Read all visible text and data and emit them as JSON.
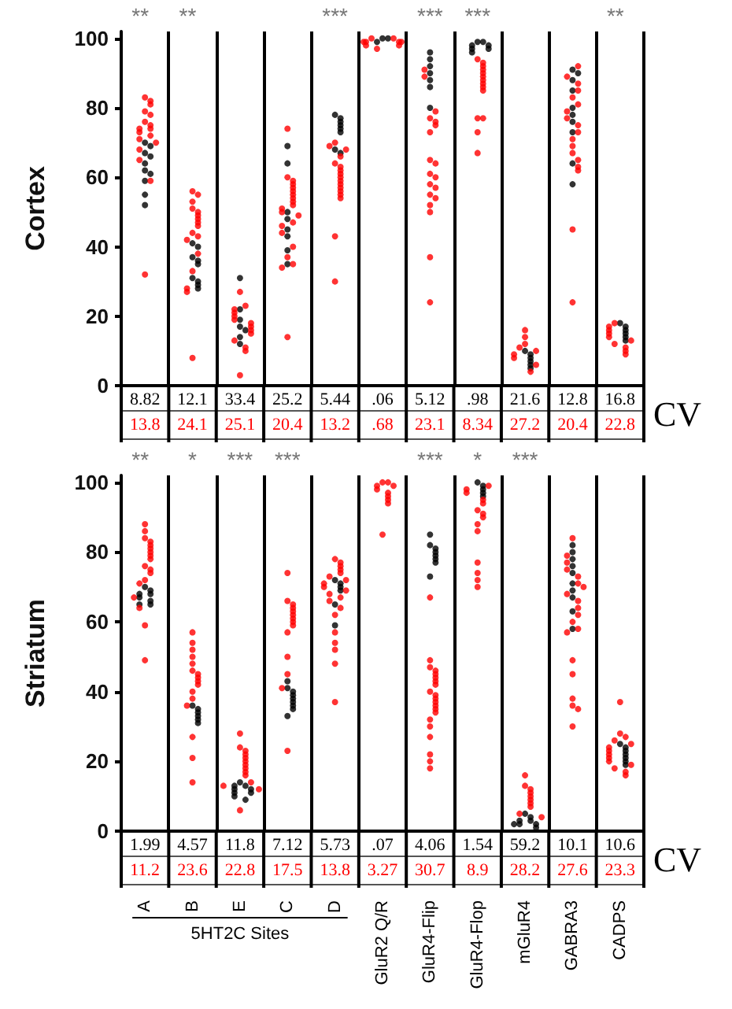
{
  "chart_data": [
    {
      "type": "scatter",
      "ylabel": "Cortex",
      "categories": [
        "A",
        "B",
        "E",
        "C",
        "D",
        "GluR2 Q/R",
        "GluR4-Flip",
        "GluR4-Flop",
        "mGluR4",
        "GABRA3",
        "CADPS"
      ],
      "ylim": [
        0,
        102
      ],
      "yticks": [
        0,
        20,
        40,
        60,
        80,
        100
      ],
      "grid": "x",
      "tick_labels": "y",
      "marker": "circle",
      "series": [
        {
          "color": "#000000",
          "x": [
            "A",
            "A",
            "A",
            "A",
            "A",
            "A",
            "A",
            "A",
            "A",
            "A",
            "B",
            "B",
            "B",
            "B",
            "B",
            "B",
            "B",
            "B",
            "B",
            "E",
            "E",
            "E",
            "E",
            "E",
            "E",
            "E",
            "C",
            "C",
            "C",
            "C",
            "C",
            "C",
            "C",
            "C",
            "D",
            "D",
            "D",
            "D",
            "D",
            "D",
            "D",
            "D",
            "GluR2 Q/R",
            "GluR2 Q/R",
            "GluR2 Q/R",
            "GluR4-Flip",
            "GluR4-Flip",
            "GluR4-Flip",
            "GluR4-Flip",
            "GluR4-Flip",
            "GluR4-Flip",
            "GluR4-Flip",
            "GluR4-Flop",
            "GluR4-Flop",
            "GluR4-Flop",
            "GluR4-Flop",
            "GluR4-Flop",
            "GluR4-Flop",
            "GluR4-Flop",
            "mGluR4",
            "mGluR4",
            "mGluR4",
            "mGluR4",
            "mGluR4",
            "mGluR4",
            "GABRA3",
            "GABRA3",
            "GABRA3",
            "GABRA3",
            "GABRA3",
            "GABRA3",
            "GABRA3",
            "GABRA3",
            "GABRA3",
            "GABRA3",
            "CADPS",
            "CADPS",
            "CADPS",
            "CADPS",
            "CADPS",
            "CADPS"
          ],
          "values": [
            70,
            69,
            67,
            66,
            64,
            62,
            61,
            59,
            55,
            52,
            41,
            40,
            37,
            36,
            35,
            31,
            30,
            29,
            28,
            31,
            22,
            19,
            17,
            16,
            14,
            12,
            69,
            64,
            50,
            48,
            45,
            43,
            39,
            35,
            78,
            77,
            76,
            75,
            74,
            73,
            68,
            67,
            100,
            100,
            99,
            96,
            94,
            92,
            90,
            88,
            86,
            80,
            99,
            99,
            98,
            98,
            97,
            97,
            96,
            10,
            9,
            8,
            7,
            6,
            5,
            91,
            90,
            88,
            85,
            80,
            78,
            76,
            73,
            64,
            58,
            18,
            17,
            16,
            15,
            14,
            13
          ]
        },
        {
          "color": "#ff0000",
          "x": [
            "A",
            "A",
            "A",
            "A",
            "A",
            "A",
            "A",
            "A",
            "A",
            "A",
            "A",
            "A",
            "A",
            "A",
            "A",
            "A",
            "A",
            "B",
            "B",
            "B",
            "B",
            "B",
            "B",
            "B",
            "B",
            "B",
            "B",
            "B",
            "B",
            "B",
            "B",
            "B",
            "B",
            "B",
            "E",
            "E",
            "E",
            "E",
            "E",
            "E",
            "E",
            "E",
            "E",
            "E",
            "E",
            "E",
            "E",
            "E",
            "C",
            "C",
            "C",
            "C",
            "C",
            "C",
            "C",
            "C",
            "C",
            "C",
            "C",
            "C",
            "C",
            "C",
            "C",
            "C",
            "C",
            "C",
            "C",
            "C",
            "C",
            "D",
            "D",
            "D",
            "D",
            "D",
            "D",
            "D",
            "D",
            "D",
            "D",
            "D",
            "D",
            "D",
            "D",
            "D",
            "D",
            "D",
            "GluR2 Q/R",
            "GluR2 Q/R",
            "GluR2 Q/R",
            "GluR2 Q/R",
            "GluR2 Q/R",
            "GluR2 Q/R",
            "GluR2 Q/R",
            "GluR2 Q/R",
            "GluR2 Q/R",
            "GluR4-Flip",
            "GluR4-Flip",
            "GluR4-Flip",
            "GluR4-Flip",
            "GluR4-Flip",
            "GluR4-Flip",
            "GluR4-Flip",
            "GluR4-Flip",
            "GluR4-Flip",
            "GluR4-Flip",
            "GluR4-Flip",
            "GluR4-Flip",
            "GluR4-Flip",
            "GluR4-Flip",
            "GluR4-Flip",
            "GluR4-Flip",
            "GluR4-Flip",
            "GluR4-Flip",
            "GluR4-Flip",
            "GluR4-Flop",
            "GluR4-Flop",
            "GluR4-Flop",
            "GluR4-Flop",
            "GluR4-Flop",
            "GluR4-Flop",
            "GluR4-Flop",
            "GluR4-Flop",
            "GluR4-Flop",
            "GluR4-Flop",
            "GluR4-Flop",
            "GluR4-Flop",
            "GluR4-Flop",
            "GluR4-Flop",
            "mGluR4",
            "mGluR4",
            "mGluR4",
            "mGluR4",
            "mGluR4",
            "mGluR4",
            "mGluR4",
            "mGluR4",
            "mGluR4",
            "GABRA3",
            "GABRA3",
            "GABRA3",
            "GABRA3",
            "GABRA3",
            "GABRA3",
            "GABRA3",
            "GABRA3",
            "GABRA3",
            "GABRA3",
            "GABRA3",
            "GABRA3",
            "GABRA3",
            "GABRA3",
            "GABRA3",
            "GABRA3",
            "GABRA3",
            "GABRA3",
            "CADPS",
            "CADPS",
            "CADPS",
            "CADPS",
            "CADPS",
            "CADPS",
            "CADPS",
            "CADPS",
            "CADPS",
            "CADPS"
          ],
          "values": [
            83,
            82,
            81,
            79,
            78,
            76,
            75,
            74,
            74,
            73,
            72,
            71,
            70,
            68,
            65,
            59,
            32,
            56,
            55,
            53,
            51,
            50,
            49,
            48,
            47,
            46,
            44,
            43,
            42,
            38,
            33,
            28,
            27,
            8,
            27,
            23,
            22,
            21,
            20,
            19,
            18,
            17,
            16,
            15,
            13,
            11,
            10,
            3,
            74,
            60,
            59,
            58,
            57,
            56,
            55,
            54,
            53,
            52,
            51,
            50,
            49,
            47,
            46,
            44,
            40,
            37,
            35,
            34,
            14,
            70,
            69,
            68,
            66,
            64,
            63,
            62,
            61,
            60,
            59,
            58,
            57,
            56,
            55,
            54,
            43,
            30,
            100,
            100,
            99,
            99,
            99,
            99,
            98,
            98,
            97,
            91,
            89,
            79,
            77,
            76,
            75,
            73,
            65,
            64,
            61,
            60,
            58,
            57,
            55,
            54,
            52,
            50,
            37,
            24,
            94,
            93,
            92,
            91,
            90,
            89,
            88,
            87,
            86,
            85,
            77,
            77,
            73,
            67,
            16,
            14,
            12,
            11,
            10,
            9,
            8,
            6,
            4,
            92,
            89,
            87,
            85,
            83,
            81,
            79,
            77,
            75,
            73,
            71,
            69,
            67,
            65,
            63,
            62,
            45,
            24,
            18,
            17,
            16,
            15,
            14,
            13,
            12,
            11,
            10,
            9
          ]
        }
      ],
      "annotations": [
        " **   **             ***       ***  ***            **",
        "8.82",
        "12.1",
        "33.4",
        "25.2",
        "5.44",
        ".06",
        "5.12",
        ".98",
        "21.6",
        "12.8",
        "16.8",
        "13.8",
        "24.1",
        "25.1",
        "20.4",
        "13.2",
        ".68",
        "23.1",
        "8.34",
        "27.2",
        "20.4",
        "22.8",
        "CV"
      ]
    },
    {
      "type": "scatter",
      "ylabel": "Striatum",
      "categories": [
        "A",
        "B",
        "E",
        "C",
        "D",
        "GluR2 Q/R",
        "GluR4-Flip",
        "GluR4-Flop",
        "mGluR4",
        "GABRA3",
        "CADPS"
      ],
      "ylim": [
        0,
        102
      ],
      "yticks": [
        0,
        20,
        40,
        60,
        80,
        100
      ],
      "grid": "x",
      "marker": "circle",
      "series": [
        {
          "color": "#000000",
          "x": [
            "A",
            "A",
            "A",
            "A",
            "A",
            "A",
            "A",
            "A",
            "B",
            "B",
            "B",
            "B",
            "B",
            "B",
            "E",
            "E",
            "E",
            "E",
            "E",
            "E",
            "E",
            "E",
            "E",
            "C",
            "C",
            "C",
            "C",
            "C",
            "C",
            "C",
            "C",
            "C",
            "D",
            "D",
            "D",
            "D",
            "D",
            "D",
            "GluR4-Flip",
            "GluR4-Flip",
            "GluR4-Flip",
            "GluR4-Flip",
            "GluR4-Flip",
            "GluR4-Flip",
            "GluR4-Flip",
            "GluR4-Flip",
            "GluR4-Flop",
            "GluR4-Flop",
            "GluR4-Flop",
            "GluR4-Flop",
            "GluR4-Flop",
            "mGluR4",
            "mGluR4",
            "mGluR4",
            "mGluR4",
            "mGluR4",
            "mGluR4",
            "mGluR4",
            "mGluR4",
            "GABRA3",
            "GABRA3",
            "GABRA3",
            "GABRA3",
            "GABRA3",
            "GABRA3",
            "GABRA3",
            "GABRA3",
            "GABRA3",
            "GABRA3",
            "CADPS",
            "CADPS",
            "CADPS",
            "CADPS",
            "CADPS",
            "CADPS",
            "CADPS"
          ],
          "values": [
            70,
            69,
            68,
            68,
            67,
            66,
            65,
            65,
            36,
            35,
            34,
            33,
            32,
            31,
            14,
            13,
            13,
            12,
            12,
            11,
            11,
            10,
            9,
            43,
            41,
            40,
            39,
            38,
            37,
            36,
            35,
            33,
            72,
            71,
            70,
            69,
            65,
            59,
            85,
            82,
            81,
            80,
            79,
            78,
            77,
            73,
            100,
            99,
            98,
            97,
            96,
            5,
            4,
            3,
            3,
            2,
            2,
            2,
            1,
            82,
            80,
            78,
            76,
            74,
            71,
            69,
            67,
            63,
            58,
            25,
            24,
            23,
            22,
            21,
            20,
            19
          ]
        },
        {
          "color": "#ff0000",
          "x": [
            "A",
            "A",
            "A",
            "A",
            "A",
            "A",
            "A",
            "A",
            "A",
            "A",
            "A",
            "A",
            "A",
            "A",
            "A",
            "A",
            "A",
            "A",
            "B",
            "B",
            "B",
            "B",
            "B",
            "B",
            "B",
            "B",
            "B",
            "B",
            "B",
            "B",
            "B",
            "B",
            "B",
            "B",
            "E",
            "E",
            "E",
            "E",
            "E",
            "E",
            "E",
            "E",
            "E",
            "E",
            "E",
            "E",
            "E",
            "E",
            "C",
            "C",
            "C",
            "C",
            "C",
            "C",
            "C",
            "C",
            "C",
            "C",
            "C",
            "C",
            "C",
            "C",
            "D",
            "D",
            "D",
            "D",
            "D",
            "D",
            "D",
            "D",
            "D",
            "D",
            "D",
            "D",
            "D",
            "D",
            "D",
            "D",
            "D",
            "D",
            "D",
            "D",
            "GluR2 Q/R",
            "GluR2 Q/R",
            "GluR2 Q/R",
            "GluR2 Q/R",
            "GluR2 Q/R",
            "GluR2 Q/R",
            "GluR2 Q/R",
            "GluR2 Q/R",
            "GluR2 Q/R",
            "GluR2 Q/R",
            "GluR4-Flip",
            "GluR4-Flip",
            "GluR4-Flip",
            "GluR4-Flip",
            "GluR4-Flip",
            "GluR4-Flip",
            "GluR4-Flip",
            "GluR4-Flip",
            "GluR4-Flip",
            "GluR4-Flip",
            "GluR4-Flip",
            "GluR4-Flip",
            "GluR4-Flip",
            "GluR4-Flip",
            "GluR4-Flip",
            "GluR4-Flip",
            "GluR4-Flip",
            "GluR4-Flip",
            "GluR4-Flip",
            "GluR4-Flip",
            "GluR4-Flip",
            "GluR4-Flop",
            "GluR4-Flop",
            "GluR4-Flop",
            "GluR4-Flop",
            "GluR4-Flop",
            "GluR4-Flop",
            "GluR4-Flop",
            "GluR4-Flop",
            "GluR4-Flop",
            "GluR4-Flop",
            "GluR4-Flop",
            "GluR4-Flop",
            "GluR4-Flop",
            "GluR4-Flop",
            "mGluR4",
            "mGluR4",
            "mGluR4",
            "mGluR4",
            "mGluR4",
            "mGluR4",
            "mGluR4",
            "mGluR4",
            "mGluR4",
            "mGluR4",
            "GABRA3",
            "GABRA3",
            "GABRA3",
            "GABRA3",
            "GABRA3",
            "GABRA3",
            "GABRA3",
            "GABRA3",
            "GABRA3",
            "GABRA3",
            "GABRA3",
            "GABRA3",
            "GABRA3",
            "GABRA3",
            "GABRA3",
            "GABRA3",
            "GABRA3",
            "GABRA3",
            "GABRA3",
            "GABRA3",
            "CADPS",
            "CADPS",
            "CADPS",
            "CADPS",
            "CADPS",
            "CADPS",
            "CADPS",
            "CADPS",
            "CADPS",
            "CADPS",
            "CADPS",
            "CADPS",
            "CADPS",
            "CADPS"
          ],
          "values": [
            88,
            86,
            84,
            83,
            82,
            81,
            80,
            79,
            78,
            76,
            75,
            74,
            72,
            71,
            67,
            64,
            59,
            49,
            57,
            54,
            52,
            50,
            48,
            46,
            45,
            44,
            43,
            42,
            40,
            38,
            36,
            27,
            21,
            14,
            28,
            24,
            23,
            22,
            21,
            20,
            19,
            18,
            17,
            16,
            14,
            13,
            12,
            6,
            74,
            66,
            65,
            64,
            63,
            62,
            61,
            60,
            59,
            57,
            50,
            45,
            41,
            23,
            78,
            77,
            76,
            75,
            74,
            73,
            72,
            71,
            70,
            69,
            68,
            67,
            66,
            64,
            62,
            57,
            54,
            52,
            48,
            37,
            100,
            100,
            99,
            99,
            98,
            97,
            96,
            95,
            94,
            85,
            67,
            49,
            47,
            46,
            45,
            44,
            43,
            42,
            40,
            39,
            38,
            37,
            36,
            35,
            34,
            32,
            30,
            27,
            22,
            20,
            18,
            99,
            98,
            97,
            95,
            94,
            92,
            91,
            90,
            88,
            86,
            77,
            74,
            72,
            70,
            16,
            13,
            12,
            11,
            10,
            9,
            8,
            7,
            5,
            4,
            84,
            79,
            77,
            75,
            73,
            71,
            70,
            68,
            66,
            64,
            62,
            60,
            58,
            57,
            49,
            45,
            38,
            36,
            35,
            30,
            37,
            28,
            27,
            26,
            25,
            24,
            23,
            22,
            21,
            20,
            19,
            18,
            17,
            16
          ]
        }
      ],
      "annotations": [
        " **    *   ***  ***            ***   *   ***",
        "1.99",
        "4.57",
        "11.8",
        "7.12",
        "5.73",
        ".07",
        "4.06",
        "1.54",
        "59.2",
        "10.1",
        "10.6",
        "11.2",
        "23.6",
        "22.8",
        "17.5",
        "13.8",
        "3.27",
        "30.7",
        "8.9",
        "28.2",
        "27.6",
        "23.3",
        "CV",
        "5HT2C Sites"
      ]
    }
  ]
}
